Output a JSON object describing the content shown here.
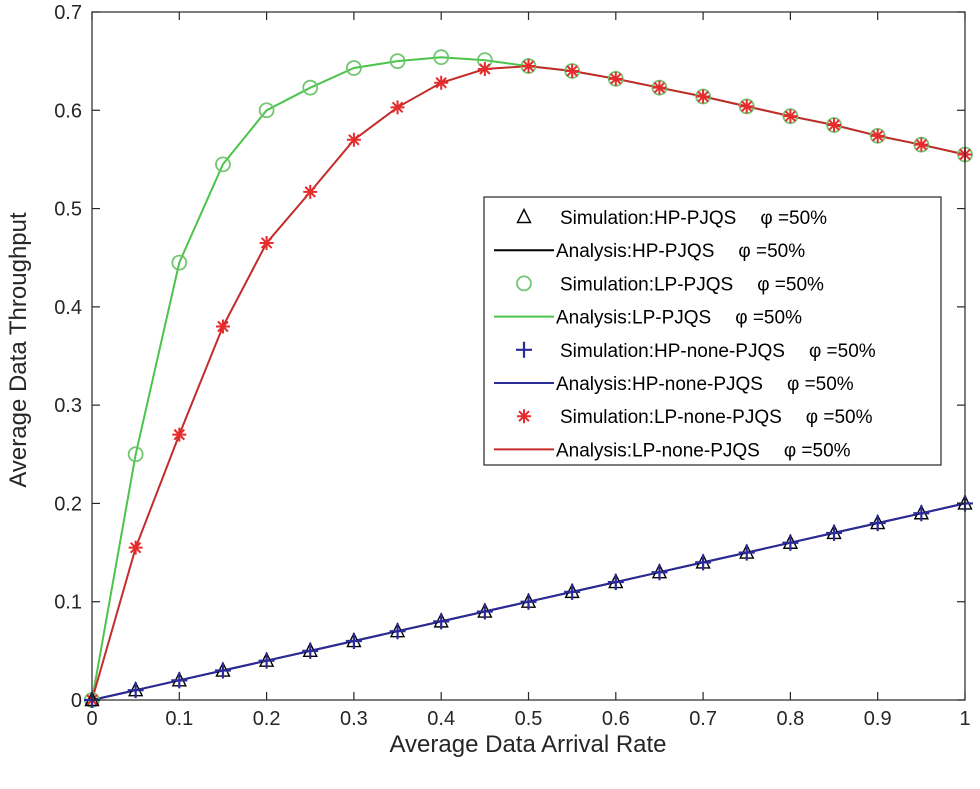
{
  "chart_data": {
    "type": "line",
    "title": "",
    "xlabel": "Average Data Arrival Rate",
    "ylabel": "Average Data Throughput",
    "xlim": [
      0,
      1
    ],
    "ylim": [
      0,
      0.7
    ],
    "xticks": [
      0,
      0.1,
      0.2,
      0.3,
      0.4,
      0.5,
      0.6,
      0.7,
      0.8,
      0.9,
      1
    ],
    "xtick_labels": [
      "0",
      "0.1",
      "0.2",
      "0.3",
      "0.4",
      "0.5",
      "0.6",
      "0.7",
      "0.8",
      "0.9",
      "1"
    ],
    "yticks": [
      0,
      0.1,
      0.2,
      0.3,
      0.4,
      0.5,
      0.6,
      0.7
    ],
    "ytick_labels": [
      "0",
      "0.1",
      "0.2",
      "0.3",
      "0.4",
      "0.5",
      "0.6",
      "0.7"
    ],
    "grid": false,
    "legend_position": "center-right",
    "x": [
      0,
      0.05,
      0.1,
      0.15,
      0.2,
      0.25,
      0.3,
      0.35,
      0.4,
      0.45,
      0.5,
      0.55,
      0.6,
      0.65,
      0.7,
      0.75,
      0.8,
      0.85,
      0.9,
      0.95,
      1
    ],
    "series": [
      {
        "name": "Simulation:HP-PJQS",
        "phi_label": "φ =50%",
        "style": "marker",
        "marker": "triangle",
        "color": "#000000",
        "values": [
          0,
          0.01,
          0.02,
          0.03,
          0.04,
          0.05,
          0.06,
          0.07,
          0.08,
          0.09,
          0.1,
          0.11,
          0.12,
          0.13,
          0.14,
          0.15,
          0.16,
          0.17,
          0.18,
          0.19,
          0.2
        ]
      },
      {
        "name": "Analysis:HP-PJQS",
        "phi_label": "φ =50%",
        "style": "line",
        "color": "#000000",
        "values": [
          0,
          0.01,
          0.02,
          0.03,
          0.04,
          0.05,
          0.06,
          0.07,
          0.08,
          0.09,
          0.1,
          0.11,
          0.12,
          0.13,
          0.14,
          0.15,
          0.16,
          0.17,
          0.18,
          0.19,
          0.2
        ]
      },
      {
        "name": "Simulation:LP-PJQS",
        "phi_label": "φ =50%",
        "style": "marker",
        "marker": "circle",
        "color": "#6cc36c",
        "values": [
          0,
          0.25,
          0.445,
          0.545,
          0.6,
          0.623,
          0.643,
          0.65,
          0.654,
          0.651,
          0.645,
          0.64,
          0.632,
          0.623,
          0.614,
          0.604,
          0.594,
          0.585,
          0.574,
          0.565,
          0.555
        ]
      },
      {
        "name": "Analysis:LP-PJQS",
        "phi_label": "φ =50%",
        "style": "line",
        "color": "#4cc44c",
        "values": [
          0,
          0.25,
          0.445,
          0.545,
          0.6,
          0.623,
          0.643,
          0.65,
          0.654,
          0.651,
          0.645,
          0.64,
          0.632,
          0.623,
          0.614,
          0.604,
          0.594,
          0.585,
          0.574,
          0.565,
          0.555
        ]
      },
      {
        "name": "Simulation:HP-none-PJQS",
        "phi_label": "φ =50%",
        "style": "marker",
        "marker": "plus",
        "color": "#2b2b9a",
        "values": [
          0,
          0.01,
          0.02,
          0.03,
          0.04,
          0.05,
          0.06,
          0.07,
          0.08,
          0.09,
          0.1,
          0.11,
          0.12,
          0.13,
          0.14,
          0.15,
          0.16,
          0.17,
          0.18,
          0.19,
          0.2
        ]
      },
      {
        "name": "Analysis:HP-none-PJQS",
        "phi_label": "φ =50%",
        "style": "line",
        "color": "#2b2b9a",
        "values": [
          0,
          0.01,
          0.02,
          0.03,
          0.04,
          0.05,
          0.06,
          0.07,
          0.08,
          0.09,
          0.1,
          0.11,
          0.12,
          0.13,
          0.14,
          0.15,
          0.16,
          0.17,
          0.18,
          0.19,
          0.2
        ]
      },
      {
        "name": "Simulation:LP-none-PJQS",
        "phi_label": "φ =50%",
        "style": "marker",
        "marker": "asterisk",
        "color": "#e52b2b",
        "values": [
          0,
          0.155,
          0.27,
          0.38,
          0.465,
          0.517,
          0.57,
          0.603,
          0.628,
          0.642,
          0.645,
          0.64,
          0.632,
          0.623,
          0.614,
          0.604,
          0.594,
          0.585,
          0.574,
          0.565,
          0.555
        ]
      },
      {
        "name": "Analysis:LP-none-PJQS",
        "phi_label": "φ =50%",
        "style": "line",
        "color": "#c42b2b",
        "values": [
          0,
          0.155,
          0.27,
          0.38,
          0.465,
          0.517,
          0.57,
          0.603,
          0.628,
          0.642,
          0.645,
          0.64,
          0.632,
          0.623,
          0.614,
          0.604,
          0.594,
          0.585,
          0.574,
          0.565,
          0.555
        ]
      }
    ]
  }
}
